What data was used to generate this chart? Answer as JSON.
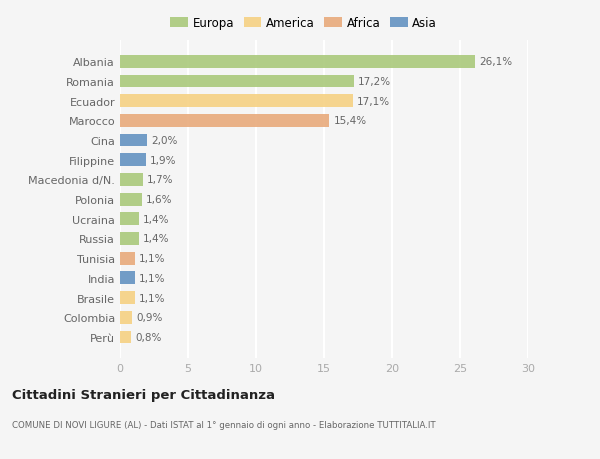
{
  "countries": [
    "Albania",
    "Romania",
    "Ecuador",
    "Marocco",
    "Cina",
    "Filippine",
    "Macedonia d/N.",
    "Polonia",
    "Ucraina",
    "Russia",
    "Tunisia",
    "India",
    "Brasile",
    "Colombia",
    "Perù"
  ],
  "values": [
    26.1,
    17.2,
    17.1,
    15.4,
    2.0,
    1.9,
    1.7,
    1.6,
    1.4,
    1.4,
    1.1,
    1.1,
    1.1,
    0.9,
    0.8
  ],
  "labels": [
    "26,1%",
    "17,2%",
    "17,1%",
    "15,4%",
    "2,0%",
    "1,9%",
    "1,7%",
    "1,6%",
    "1,4%",
    "1,4%",
    "1,1%",
    "1,1%",
    "1,1%",
    "0,9%",
    "0,8%"
  ],
  "continents": [
    "Europa",
    "Europa",
    "America",
    "Africa",
    "Asia",
    "Asia",
    "Europa",
    "Europa",
    "Europa",
    "Europa",
    "Africa",
    "Asia",
    "America",
    "America",
    "America"
  ],
  "colors": {
    "Europa": "#a8c878",
    "America": "#f5d080",
    "Africa": "#e8a878",
    "Asia": "#6090c0"
  },
  "bg_color": "#f5f5f5",
  "title": "Cittadini Stranieri per Cittadinanza",
  "subtitle": "COMUNE DI NOVI LIGURE (AL) - Dati ISTAT al 1° gennaio di ogni anno - Elaborazione TUTTITALIA.IT",
  "xlim": [
    0,
    30
  ],
  "xticks": [
    0,
    5,
    10,
    15,
    20,
    25,
    30
  ],
  "grid_color": "#ffffff",
  "legend_order": [
    "Europa",
    "America",
    "Africa",
    "Asia"
  ]
}
